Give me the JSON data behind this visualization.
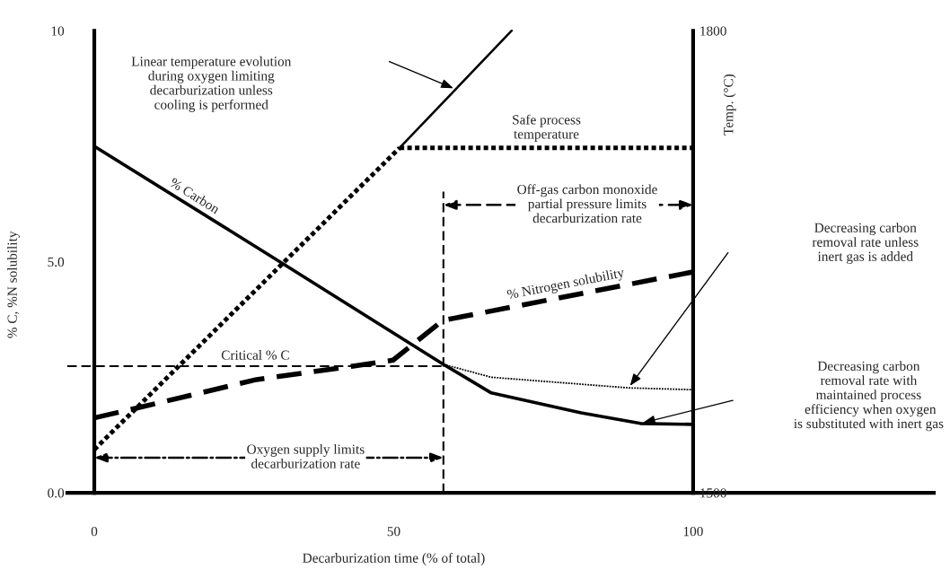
{
  "chart_data": {
    "type": "line",
    "xlabel": "Decarburization time (% of total)",
    "ylabel": "% C, %N solubility",
    "y2label": "Temp. (°C)",
    "xlim": [
      -4.5,
      140.2
    ],
    "xticks": [
      0,
      50,
      100
    ],
    "ylim": [
      0,
      10
    ],
    "yticks": [
      {
        "value": 0,
        "label": "0.0"
      },
      {
        "value": 5,
        "label": "5.0"
      },
      10
    ],
    "y2lim": [
      1500,
      1800
    ],
    "y2ticks": [
      1500,
      1800
    ],
    "grid": false,
    "legend": false,
    "marker": "none",
    "series": [
      {
        "name": "% Carbon",
        "line_style": "solid",
        "color": "#000000",
        "x": [
          0,
          31.6,
          58.3,
          66.3,
          81.3,
          91.2,
          100
        ],
        "values": [
          7.5,
          4.95,
          2.78,
          2.16,
          1.73,
          1.5,
          1.48
        ]
      },
      {
        "line_style": "dotted",
        "color": "#000000",
        "x": [
          58.3,
          66.3,
          89.2,
          100
        ],
        "values": [
          2.78,
          2.5,
          2.27,
          2.23
        ]
      },
      {
        "name": "% Nitrogen solubility",
        "line_style": "dashed",
        "color": "#000000",
        "x": [
          0,
          5.7,
          27.1,
          43.2,
          49.9,
          58.2,
          100
        ],
        "values": [
          1.62,
          1.79,
          2.45,
          2.74,
          2.87,
          3.73,
          4.78
        ]
      },
      {
        "name": "Critical % C",
        "line_style": "dashed",
        "color": "#000000",
        "x": [
          -4.5,
          58.3
        ],
        "values": [
          2.74,
          2.74
        ]
      },
      {
        "line_style": "dashed",
        "color": "#000000",
        "x": [
          58.3,
          58.3
        ],
        "values": [
          0,
          6.52
        ]
      },
      {
        "line_style": "dotted",
        "color": "#000000",
        "axis": "y2",
        "x": [
          0,
          51
        ],
        "values": [
          1528,
          1724
        ]
      },
      {
        "line_style": "solid",
        "color": "#000000",
        "axis": "y2",
        "x": [
          51,
          69.7
        ],
        "values": [
          1724,
          1800
        ]
      },
      {
        "name": "Safe process\ntemperature",
        "line_style": "dotted",
        "color": "#000000",
        "axis": "y2",
        "x": [
          51,
          100
        ],
        "values": [
          1724,
          1724
        ]
      }
    ],
    "annotations": [
      "Linear temperature evolution\nduring oxygen limiting\ndecarburization unless\ncooling is performed",
      "Oxygen supply limits\ndecarburization rate",
      "Off-gas carbon monoxide\npartial pressure limits\ndecarburization rate",
      "Decreasing carbon\nremoval rate unless\ninert gas is added",
      "Decreasing carbon\nremoval rate with\nmaintained process\n efficiency when oxygen\nis substituted with inert gas"
    ]
  }
}
